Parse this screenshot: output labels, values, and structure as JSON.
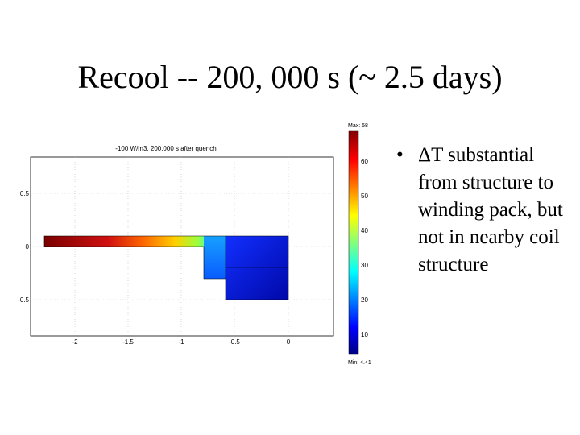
{
  "slide": {
    "title": "Recool -- 200, 000 s (~ 2.5 days)",
    "bullet_marker": "•",
    "bullet_text": "ΔT substantial from structure to winding pack, but not in nearby coil structure"
  },
  "chart_data": {
    "type": "heatmap",
    "title": "-100 W/m3, 200,000 s after quench",
    "x_ticks": [
      "-2",
      "-1.5",
      "-1",
      "-0.5",
      "0"
    ],
    "y_ticks": [
      "0.5",
      "0",
      "-0.5"
    ],
    "xlim": [
      -2.5,
      0.4
    ],
    "ylim": [
      -0.85,
      0.85
    ],
    "grid": true,
    "colorbar": {
      "max_label": "Max: 58",
      "min_label": "Min: 4.41",
      "ticks": [
        "60",
        "50",
        "40",
        "30",
        "20",
        "10"
      ],
      "range": [
        4.41,
        58
      ],
      "colormap": [
        "#000080",
        "#0000ff",
        "#00ffff",
        "#ffff00",
        "#ff0000",
        "#800000"
      ]
    },
    "regions": [
      {
        "x": [
          -2.3,
          -0.8
        ],
        "y": [
          0,
          0.1
        ],
        "temp_from": 58,
        "temp_to": 30
      },
      {
        "x": [
          -0.8,
          -0.6
        ],
        "y": [
          -0.3,
          0.1
        ],
        "temp_from": 30,
        "temp_to": 22
      },
      {
        "x": [
          -0.6,
          0
        ],
        "y": [
          -0.5,
          0.1
        ],
        "temp_from": 17,
        "temp_to": 10
      }
    ]
  }
}
